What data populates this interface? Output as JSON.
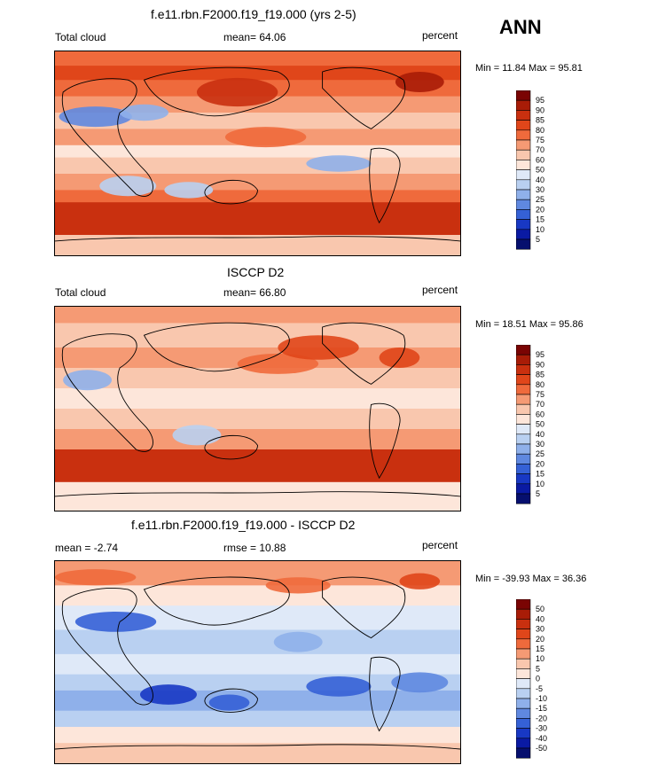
{
  "season": "ANN",
  "units": "percent",
  "panels": [
    {
      "id": "model",
      "title": "f.e11.rbn.F2000.f19_f19.000 (yrs 2-5)",
      "left_label": "Total cloud",
      "center_label": "mean=  64.06",
      "right_label": "percent",
      "minmax": "Min =  11.84 Max =  95.81",
      "colorbar_ticks": [
        "95",
        "90",
        "85",
        "80",
        "75",
        "70",
        "60",
        "50",
        "40",
        "30",
        "25",
        "20",
        "15",
        "10",
        "5"
      ]
    },
    {
      "id": "obs",
      "title": "ISCCP D2",
      "left_label": "Total cloud",
      "center_label": "mean=  66.80",
      "right_label": "percent",
      "minmax": "Min =  18.51 Max =  95.86",
      "colorbar_ticks": [
        "95",
        "90",
        "85",
        "80",
        "75",
        "70",
        "60",
        "50",
        "40",
        "30",
        "25",
        "20",
        "15",
        "10",
        "5"
      ]
    },
    {
      "id": "diff",
      "title": "f.e11.rbn.F2000.f19_f19.000 - ISCCP D2",
      "left_label": "mean =  -2.74",
      "center_label": "rmse =  10.88",
      "right_label": "percent",
      "minmax": "Min = -39.93 Max =  36.36",
      "colorbar_ticks": [
        "50",
        "40",
        "30",
        "20",
        "15",
        "10",
        "5",
        "0",
        "-5",
        "-10",
        "-15",
        "-20",
        "-30",
        "-40",
        "-50"
      ]
    }
  ],
  "colors": {
    "abs_scale": [
      "#7a0403",
      "#a81c07",
      "#c9300f",
      "#e0461a",
      "#ef6a3c",
      "#f59a74",
      "#f9c7ae",
      "#fde6da",
      "#dfe9f8",
      "#b9d0f1",
      "#8fb0ea",
      "#5f88e0",
      "#3561d6",
      "#1838c4",
      "#0a1aa3",
      "#060f6e"
    ],
    "diff_scale": [
      "#7a0403",
      "#a81c07",
      "#c9300f",
      "#e0461a",
      "#ef6a3c",
      "#f59a74",
      "#f9c7ae",
      "#fde6da",
      "#dfe9f8",
      "#b9d0f1",
      "#8fb0ea",
      "#5f88e0",
      "#3561d6",
      "#1838c4",
      "#0a1aa3",
      "#060f6e"
    ]
  },
  "chart_data": [
    {
      "type": "heatmap",
      "title": "f.e11.rbn.F2000.f19_f19.000 (yrs 2-5)",
      "variable": "Total cloud",
      "units": "percent",
      "mean": 64.06,
      "min": 11.84,
      "max": 95.81,
      "levels": [
        5,
        10,
        15,
        20,
        25,
        30,
        40,
        50,
        60,
        70,
        75,
        80,
        85,
        90,
        95
      ]
    },
    {
      "type": "heatmap",
      "title": "ISCCP D2",
      "variable": "Total cloud",
      "units": "percent",
      "mean": 66.8,
      "min": 18.51,
      "max": 95.86,
      "levels": [
        5,
        10,
        15,
        20,
        25,
        30,
        40,
        50,
        60,
        70,
        75,
        80,
        85,
        90,
        95
      ]
    },
    {
      "type": "heatmap",
      "title": "f.e11.rbn.F2000.f19_f19.000 - ISCCP D2",
      "units": "percent",
      "mean": -2.74,
      "rmse": 10.88,
      "min": -39.93,
      "max": 36.36,
      "levels": [
        -50,
        -40,
        -30,
        -20,
        -15,
        -10,
        -5,
        0,
        5,
        10,
        15,
        20,
        30,
        40,
        50
      ]
    }
  ]
}
